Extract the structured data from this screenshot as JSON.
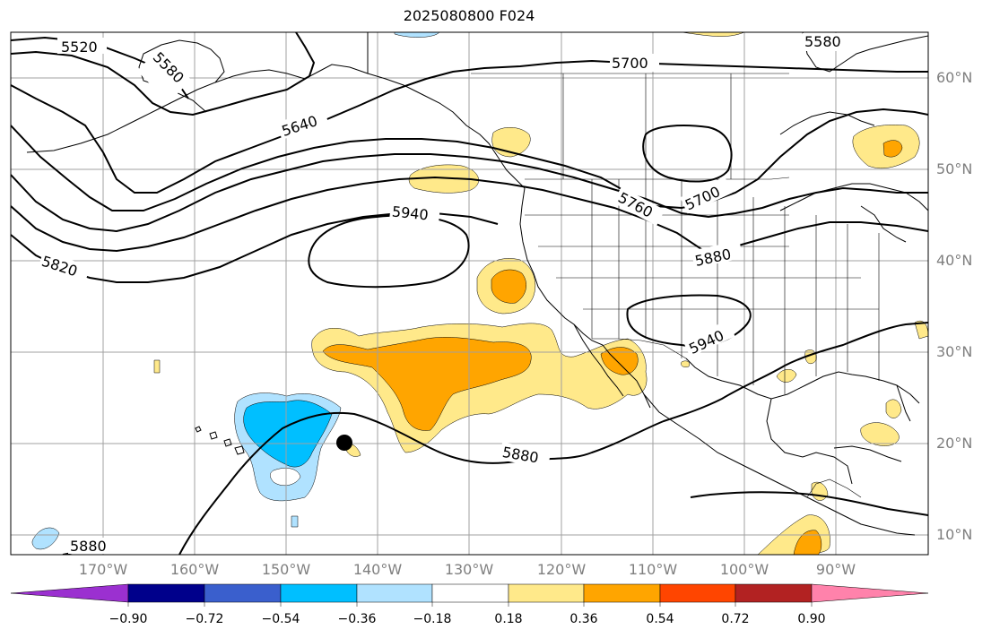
{
  "title": "2025080800 F024",
  "latitude_labels": [
    "60°N",
    "50°N",
    "40°N",
    "30°N",
    "20°N",
    "10°N"
  ],
  "longitude_labels": [
    "170°W",
    "160°W",
    "150°W",
    "140°W",
    "130°W",
    "120°W",
    "110°W",
    "100°W",
    "90°W"
  ],
  "contour_labels": [
    "5520",
    "5580",
    "5640",
    "5700",
    "5580",
    "5700",
    "5760",
    "5940",
    "5820",
    "5880",
    "5940",
    "5880",
    "5880"
  ],
  "colorbar": {
    "tick_labels": [
      "−0.90",
      "−0.72",
      "−0.54",
      "−0.36",
      "−0.18",
      "0.18",
      "0.36",
      "0.54",
      "0.72",
      "0.90"
    ],
    "colors": [
      "#9b30d0",
      "#00008b",
      "#3a5fcd",
      "#00bfff",
      "#b0e2ff",
      "#ffffff",
      "#ffe98a",
      "#ffa500",
      "#ff4500",
      "#b22222",
      "#ff82ab"
    ]
  },
  "colors": {
    "contour": "#000000",
    "gridline": "#a0a0a0",
    "coastline": "#000000",
    "storm_marker": "#000000"
  }
}
